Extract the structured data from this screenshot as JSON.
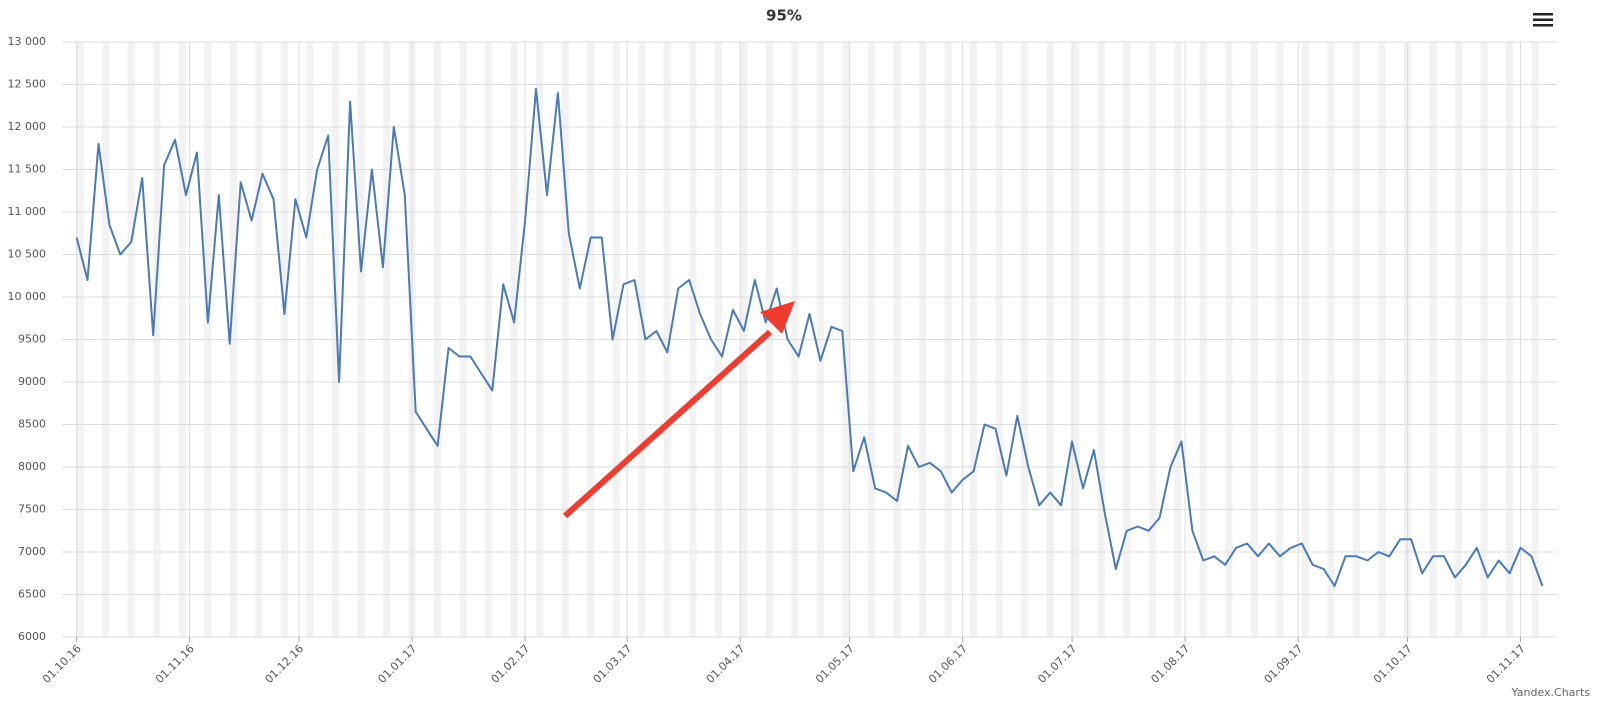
{
  "chart_data": {
    "type": "line",
    "title": "95%",
    "credit": "Yandex.Charts",
    "x": [
      "01.10.16",
      "04.10.16",
      "07.10.16",
      "10.10.16",
      "13.10.16",
      "16.10.16",
      "19.10.16",
      "22.10.16",
      "25.10.16",
      "28.10.16",
      "31.10.16",
      "03.11.16",
      "06.11.16",
      "09.11.16",
      "12.11.16",
      "15.11.16",
      "18.11.16",
      "21.11.16",
      "24.11.16",
      "27.11.16",
      "30.11.16",
      "03.12.16",
      "06.12.16",
      "09.12.16",
      "12.12.16",
      "15.12.16",
      "18.12.16",
      "21.12.16",
      "24.12.16",
      "27.12.16",
      "30.12.16",
      "02.01.17",
      "05.01.17",
      "08.01.17",
      "11.01.17",
      "14.01.17",
      "17.01.17",
      "20.01.17",
      "23.01.17",
      "26.01.17",
      "29.01.17",
      "01.02.17",
      "04.02.17",
      "07.02.17",
      "10.02.17",
      "13.02.17",
      "16.02.17",
      "19.02.17",
      "22.02.17",
      "25.02.17",
      "28.02.17",
      "03.03.17",
      "06.03.17",
      "09.03.17",
      "12.03.17",
      "15.03.17",
      "18.03.17",
      "21.03.17",
      "24.03.17",
      "27.03.17",
      "30.03.17",
      "02.04.17",
      "05.04.17",
      "08.04.17",
      "11.04.17",
      "14.04.17",
      "17.04.17",
      "20.04.17",
      "23.04.17",
      "26.04.17",
      "29.04.17",
      "02.05.17",
      "05.05.17",
      "08.05.17",
      "11.05.17",
      "14.05.17",
      "17.05.17",
      "20.05.17",
      "23.05.17",
      "26.05.17",
      "29.05.17",
      "01.06.17",
      "04.06.17",
      "07.06.17",
      "10.06.17",
      "13.06.17",
      "16.06.17",
      "19.06.17",
      "22.06.17",
      "25.06.17",
      "28.06.17",
      "01.07.17",
      "04.07.17",
      "07.07.17",
      "10.07.17",
      "13.07.17",
      "16.07.17",
      "19.07.17",
      "22.07.17",
      "25.07.17",
      "28.07.17",
      "31.07.17",
      "03.08.17",
      "06.08.17",
      "09.08.17",
      "12.08.17",
      "15.08.17",
      "18.08.17",
      "21.08.17",
      "24.08.17",
      "27.08.17",
      "30.08.17",
      "02.09.17",
      "05.09.17",
      "08.09.17",
      "11.09.17",
      "14.09.17",
      "17.09.17",
      "20.09.17",
      "23.09.17",
      "26.09.17",
      "29.09.17",
      "02.10.17",
      "05.10.17",
      "08.10.17",
      "11.10.17",
      "14.10.17",
      "17.10.17",
      "20.10.17",
      "23.10.17",
      "26.10.17",
      "29.10.17",
      "01.11.17",
      "04.11.17",
      "07.11.17"
    ],
    "series": [
      {
        "name": "95%",
        "color": "#4a7ab7",
        "values": [
          10700,
          10200,
          11800,
          10850,
          10500,
          10650,
          11400,
          9550,
          11550,
          11850,
          11200,
          11700,
          9700,
          11200,
          9450,
          11350,
          10900,
          11450,
          11150,
          9800,
          11150,
          10700,
          11500,
          11900,
          9000,
          12300,
          10300,
          11500,
          10350,
          12000,
          11200,
          8650,
          8450,
          8250,
          9400,
          9300,
          9300,
          9100,
          8900,
          10150,
          9700,
          10900,
          12450,
          11200,
          12400,
          10750,
          10100,
          10700,
          10700,
          9500,
          10150,
          10200,
          9500,
          9600,
          9350,
          10100,
          10200,
          9800,
          9500,
          9300,
          9850,
          9600,
          10200,
          9700,
          10100,
          9500,
          9300,
          9800,
          9250,
          9650,
          9600,
          7950,
          8350,
          7750,
          7700,
          7600,
          8250,
          8000,
          8050,
          7950,
          7700,
          7850,
          7950,
          8500,
          8450,
          7900,
          8600,
          8000,
          7550,
          7700,
          7550,
          8300,
          7750,
          8200,
          7450,
          6800,
          7250,
          7300,
          7250,
          7400,
          8000,
          8300,
          7250,
          6900,
          6950,
          6850,
          7050,
          7100,
          6950,
          7100,
          6950,
          7050,
          7100,
          6850,
          6800,
          6600,
          6950,
          6950,
          6900,
          7000,
          6950,
          7150,
          7150,
          6750,
          6950,
          6950,
          6700,
          6850,
          7050,
          6700,
          6900,
          6750,
          7050,
          6950,
          6600
        ]
      }
    ],
    "xlim": [
      "27.09.16",
      "11.11.17"
    ],
    "xticks": [
      "01.10.16",
      "01.11.16",
      "01.12.16",
      "01.01.17",
      "01.02.17",
      "01.03.17",
      "01.04.17",
      "01.05.17",
      "01.06.17",
      "01.07.17",
      "01.08.17",
      "01.09.17",
      "01.10.17",
      "01.11.17"
    ],
    "ylim": [
      6000,
      13000
    ],
    "yticks": [
      {
        "value": 6000,
        "label": "6000"
      },
      {
        "value": 6500,
        "label": "6500"
      },
      {
        "value": 7000,
        "label": "7000"
      },
      {
        "value": 7500,
        "label": "7500"
      },
      {
        "value": 8000,
        "label": "8000"
      },
      {
        "value": 8500,
        "label": "8500"
      },
      {
        "value": 9000,
        "label": "9000"
      },
      {
        "value": 9500,
        "label": "9500"
      },
      {
        "value": 10000,
        "label": "10 000"
      },
      {
        "value": 10500,
        "label": "10 500"
      },
      {
        "value": 11000,
        "label": "11 000"
      },
      {
        "value": 11500,
        "label": "11 500"
      },
      {
        "value": 12000,
        "label": "12 000"
      },
      {
        "value": 12500,
        "label": "12 500"
      },
      {
        "value": 13000,
        "label": "13 000"
      }
    ],
    "grid": true
  }
}
